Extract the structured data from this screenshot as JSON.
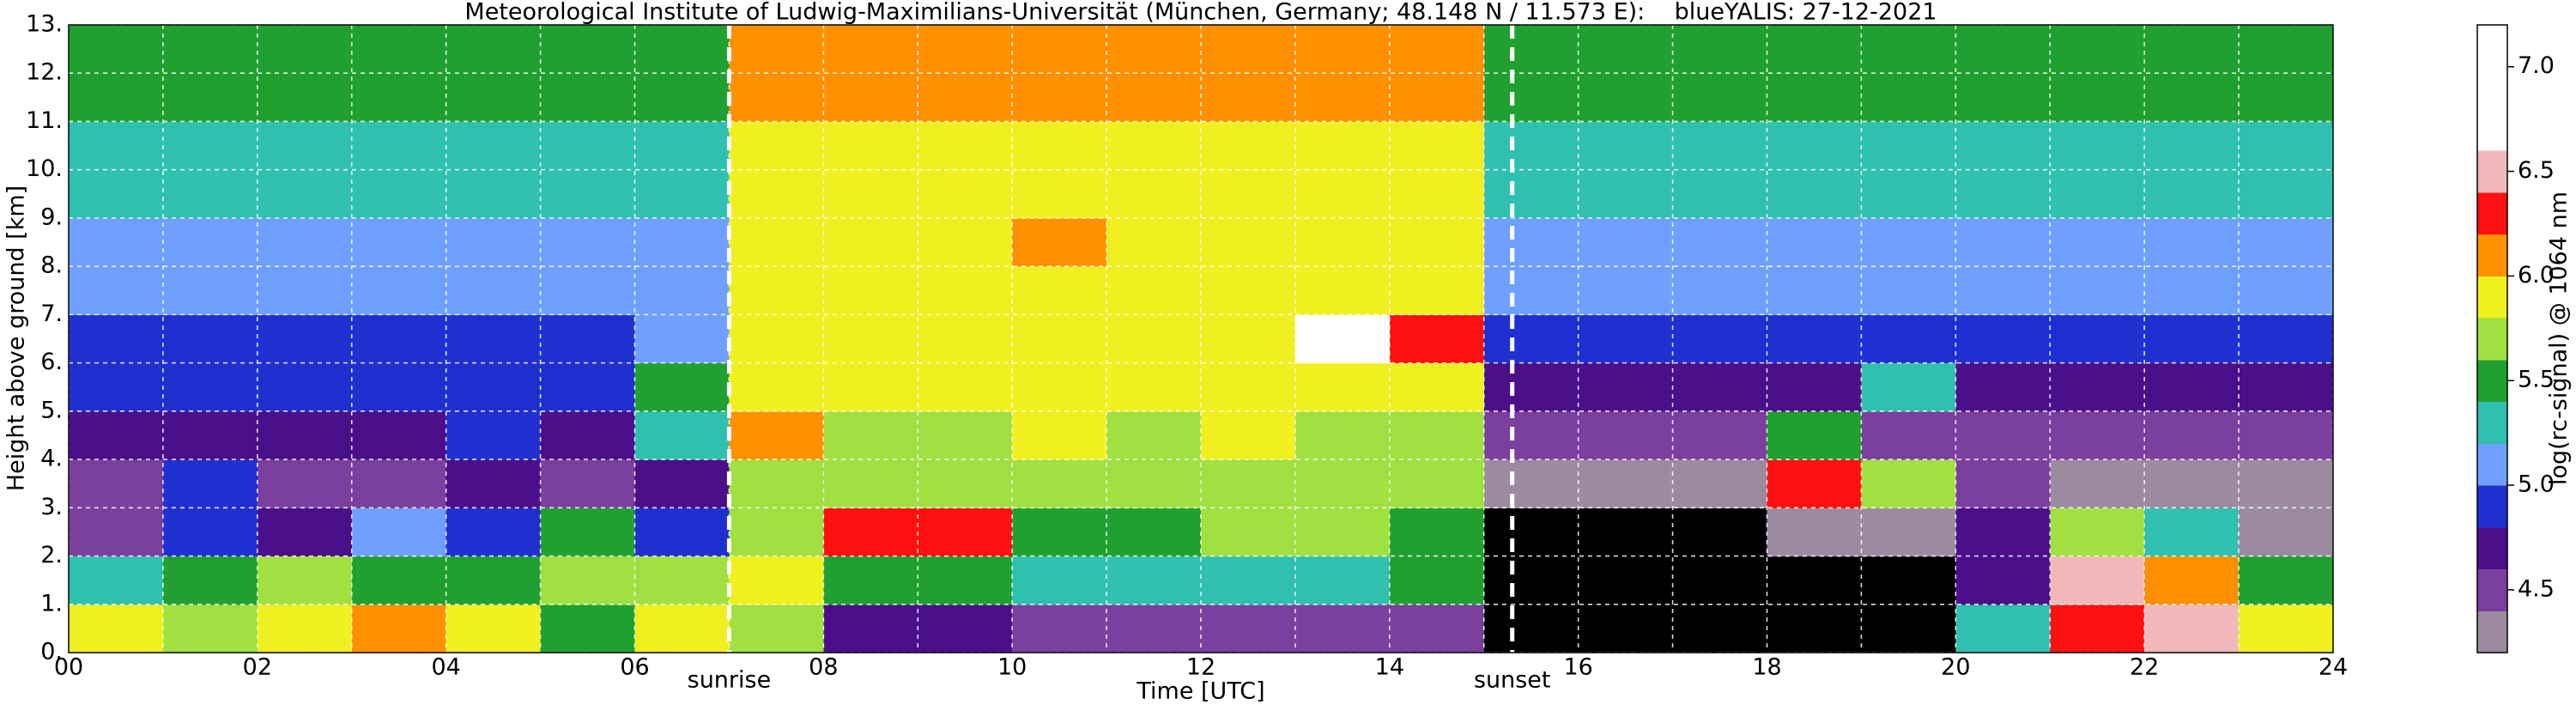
{
  "chart_data": {
    "type": "heatmap",
    "title": "Meteorological Institute of Ludwig-Maximilians-Universität (München, Germany; 48.148 N / 11.573 E):    blueYALIS: 27-12-2021",
    "x_label": "Time [UTC]",
    "y_label": "Height above ground [km]",
    "colorbar_label": "log(rc-signal) @ 1064 nm",
    "xlim": [
      0,
      24
    ],
    "ylim": [
      0,
      13
    ],
    "xticks": [
      {
        "value": 0,
        "label": "00"
      },
      {
        "value": 2,
        "label": "02"
      },
      {
        "value": 4,
        "label": "04"
      },
      {
        "value": 6,
        "label": "06"
      },
      {
        "value": 8,
        "label": "08"
      },
      {
        "value": 10,
        "label": "10"
      },
      {
        "value": 12,
        "label": "12"
      },
      {
        "value": 14,
        "label": "14"
      },
      {
        "value": 16,
        "label": "16"
      },
      {
        "value": 18,
        "label": "18"
      },
      {
        "value": 20,
        "label": "20"
      },
      {
        "value": 22,
        "label": "22"
      },
      {
        "value": 24,
        "label": "24"
      }
    ],
    "x_minor_ticks": [
      1,
      3,
      5,
      7,
      9,
      11,
      13,
      15,
      17,
      19,
      21,
      23
    ],
    "yticks": [
      {
        "value": 0,
        "label": "0."
      },
      {
        "value": 1,
        "label": "1."
      },
      {
        "value": 2,
        "label": "2."
      },
      {
        "value": 3,
        "label": "3."
      },
      {
        "value": 4,
        "label": "4."
      },
      {
        "value": 5,
        "label": "5."
      },
      {
        "value": 6,
        "label": "6."
      },
      {
        "value": 7,
        "label": "7."
      },
      {
        "value": 8,
        "label": "8."
      },
      {
        "value": 9,
        "label": "9."
      },
      {
        "value": 10,
        "label": "10."
      },
      {
        "value": 11,
        "label": "11."
      },
      {
        "value": 12,
        "label": "12."
      },
      {
        "value": 13,
        "label": "13."
      }
    ],
    "grid": true,
    "annotations": [
      {
        "text": "sunrise",
        "x": 7.0
      },
      {
        "text": "sunset",
        "x": 15.3
      }
    ],
    "x": [
      0.5,
      1.5,
      2.5,
      3.5,
      4.5,
      5.5,
      6.5,
      7.5,
      8.5,
      9.5,
      10.5,
      11.5,
      12.5,
      13.5,
      14.5,
      15.5,
      16.5,
      17.5,
      18.5,
      19.5,
      20.5,
      21.5,
      22.5,
      23.5
    ],
    "y": [
      0.5,
      1.5,
      2.5,
      3.5,
      4.5,
      5.5,
      6.5,
      7.5,
      8.5,
      9.5,
      10.5,
      11.5,
      12.5
    ],
    "z": [
      [
        5.9,
        5.6,
        5.9,
        6.1,
        5.8,
        5.5,
        5.9,
        5.6,
        4.7,
        4.6,
        4.5,
        4.5,
        4.5,
        4.5,
        4.4,
        4.0,
        4.0,
        4.0,
        4.0,
        4.0,
        5.2,
        6.3,
        6.5,
        5.8
      ],
      [
        5.3,
        5.4,
        5.6,
        5.5,
        5.4,
        5.6,
        5.7,
        5.8,
        5.5,
        5.4,
        5.2,
        5.2,
        5.3,
        5.3,
        5.4,
        4.0,
        4.0,
        4.0,
        4.0,
        4.0,
        4.6,
        6.4,
        6.1,
        5.5
      ],
      [
        4.5,
        4.8,
        4.6,
        5.0,
        4.8,
        5.4,
        4.8,
        5.6,
        6.3,
        6.2,
        5.5,
        5.5,
        5.6,
        5.6,
        5.5,
        4.1,
        4.1,
        4.1,
        4.3,
        4.2,
        4.6,
        5.6,
        5.2,
        4.2
      ],
      [
        4.5,
        4.8,
        4.5,
        4.5,
        4.6,
        4.5,
        4.6,
        5.6,
        5.6,
        5.6,
        5.6,
        5.7,
        5.7,
        5.6,
        5.6,
        4.2,
        4.3,
        4.3,
        6.2,
        5.6,
        4.5,
        4.3,
        4.3,
        4.2
      ],
      [
        4.6,
        4.7,
        4.6,
        4.6,
        4.8,
        4.6,
        5.2,
        6.0,
        5.7,
        5.7,
        5.8,
        5.7,
        5.8,
        5.7,
        5.7,
        4.4,
        4.4,
        4.4,
        5.4,
        4.5,
        4.4,
        4.4,
        4.4,
        4.4
      ],
      [
        4.8,
        4.8,
        4.8,
        4.8,
        4.8,
        4.9,
        5.5,
        5.8,
        5.8,
        5.8,
        5.8,
        5.8,
        5.8,
        5.8,
        5.9,
        4.6,
        4.6,
        4.6,
        4.7,
        5.3,
        4.6,
        4.6,
        4.6,
        4.6
      ],
      [
        4.9,
        4.9,
        4.9,
        4.9,
        4.9,
        4.9,
        5.0,
        5.8,
        5.8,
        5.8,
        5.8,
        5.8,
        5.8,
        6.7,
        6.3,
        4.8,
        4.8,
        4.8,
        4.8,
        4.8,
        4.8,
        4.8,
        4.8,
        4.8
      ],
      [
        5.0,
        5.0,
        5.0,
        5.0,
        5.0,
        5.0,
        5.0,
        5.8,
        5.8,
        5.8,
        5.8,
        5.8,
        5.8,
        5.8,
        5.8,
        5.0,
        5.0,
        5.0,
        5.0,
        5.0,
        5.0,
        5.0,
        5.0,
        5.0
      ],
      [
        5.1,
        5.1,
        5.1,
        5.1,
        5.1,
        5.1,
        5.1,
        5.9,
        5.9,
        5.9,
        6.0,
        5.9,
        5.9,
        5.9,
        5.9,
        5.1,
        5.1,
        5.1,
        5.1,
        5.1,
        5.1,
        5.1,
        5.1,
        5.1
      ],
      [
        5.2,
        5.2,
        5.2,
        5.2,
        5.2,
        5.2,
        5.2,
        5.9,
        5.9,
        5.9,
        5.9,
        5.9,
        5.9,
        5.9,
        5.9,
        5.2,
        5.2,
        5.2,
        5.2,
        5.2,
        5.2,
        5.2,
        5.2,
        5.2
      ],
      [
        5.3,
        5.3,
        5.3,
        5.3,
        5.3,
        5.3,
        5.3,
        5.9,
        5.9,
        5.9,
        5.9,
        5.9,
        5.9,
        5.9,
        5.9,
        5.3,
        5.3,
        5.3,
        5.3,
        5.3,
        5.3,
        5.3,
        5.3,
        5.3
      ],
      [
        5.4,
        5.4,
        5.4,
        5.4,
        5.4,
        5.4,
        5.4,
        6.0,
        6.0,
        6.0,
        6.0,
        6.0,
        6.0,
        6.0,
        6.0,
        5.4,
        5.4,
        5.4,
        5.4,
        5.4,
        5.4,
        5.4,
        5.4,
        5.4
      ],
      [
        5.4,
        5.4,
        5.4,
        5.4,
        5.4,
        5.4,
        5.4,
        6.0,
        6.0,
        6.0,
        6.0,
        6.0,
        6.0,
        6.0,
        6.0,
        5.4,
        5.4,
        5.4,
        5.4,
        5.4,
        5.4,
        5.4,
        5.4,
        5.4
      ]
    ],
    "clim": [
      4.2,
      7.2
    ],
    "colorbar_ticks": [
      4.5,
      {
        "value": 5,
        "label": "5.0"
      },
      5.5,
      {
        "value": 6,
        "label": "6.0"
      },
      6.5,
      {
        "value": 7,
        "label": "7.0"
      }
    ],
    "levels": [
      4.2,
      4.4,
      4.6,
      4.8,
      5.0,
      5.2,
      5.4,
      5.6,
      5.8,
      6.0,
      6.2,
      6.4,
      6.6,
      7.2
    ],
    "colors": [
      "#9c8aa0",
      "#7b3f9e",
      "#4b0f8a",
      "#2030d0",
      "#6fa0ff",
      "#30c0b0",
      "#20a030",
      "#a0e040",
      "#f0f020",
      "#ff9000",
      "#ff1010",
      "#f0b8b8",
      "#ffffff"
    ],
    "under_color": "#000000"
  }
}
